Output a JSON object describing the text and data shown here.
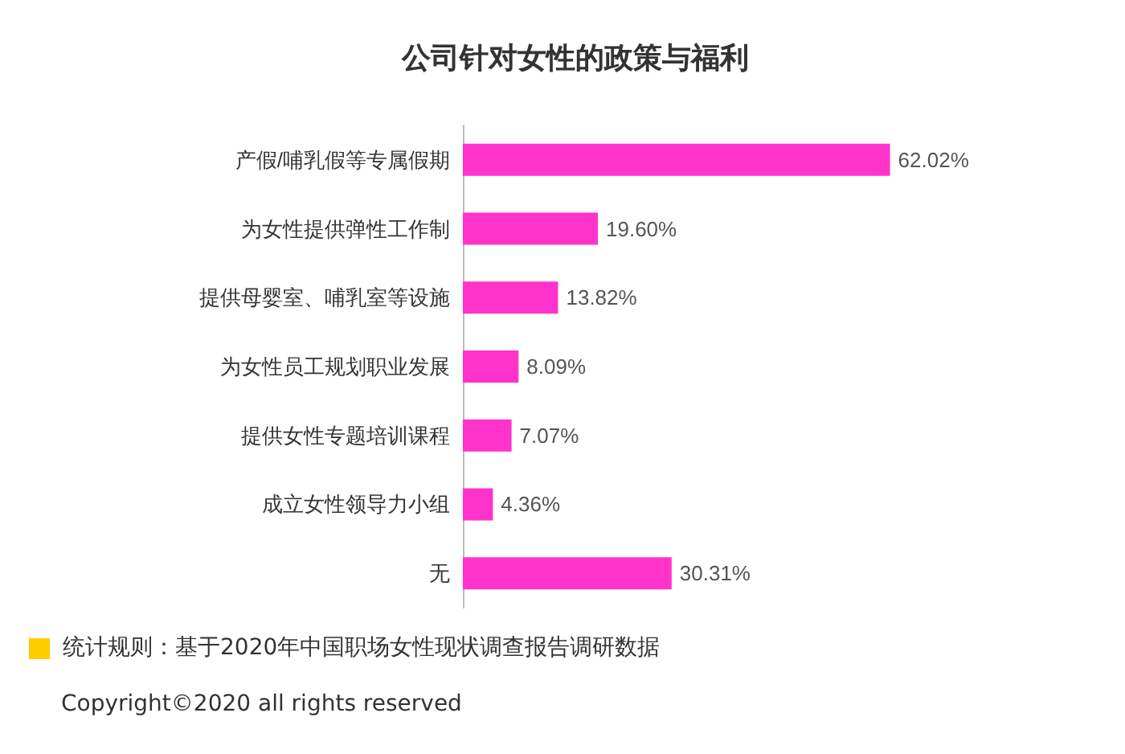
{
  "chart_data": {
    "type": "bar",
    "orientation": "horizontal",
    "title": "公司针对女性的政策与福利",
    "categories": [
      "产假/哺乳假等专属假期",
      "为女性提供弹性工作制",
      "提供母婴室、哺乳室等设施",
      "为女性员工规划职业发展",
      "提供女性专题培训课程",
      "成立女性领导力小组",
      "无"
    ],
    "values": [
      62.02,
      19.6,
      13.82,
      8.09,
      7.07,
      4.36,
      30.31
    ],
    "value_labels": [
      "62.02%",
      "19.60%",
      "13.82%",
      "8.09%",
      "7.07%",
      "4.36%",
      "30.31%"
    ],
    "color": "#ff33cc",
    "grid": false,
    "annotations": [
      "统计规则：基于2020年中国职场女性现状调查报告调研数据",
      "Copyright©2020 all rights reserved"
    ]
  }
}
